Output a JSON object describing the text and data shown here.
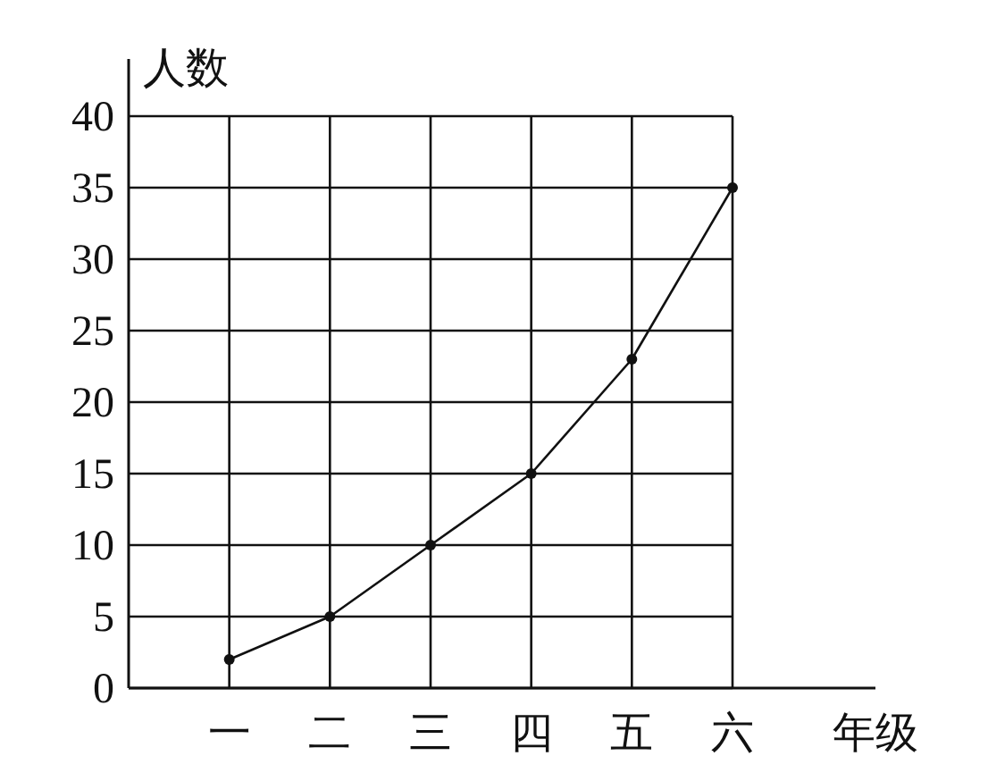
{
  "chart_data": {
    "type": "line",
    "xlabel": "年级",
    "ylabel": "人数",
    "categories": [
      "一",
      "二",
      "三",
      "四",
      "五",
      "六"
    ],
    "series": [
      {
        "color": "#111111",
        "values": [
          2,
          5,
          10,
          15,
          23,
          35
        ]
      }
    ],
    "ylim": [
      0,
      40
    ],
    "yticks": [
      0,
      5,
      10,
      15,
      20,
      25,
      30,
      35,
      40
    ],
    "grid": true,
    "marker": "circle",
    "line_style": "solid"
  }
}
